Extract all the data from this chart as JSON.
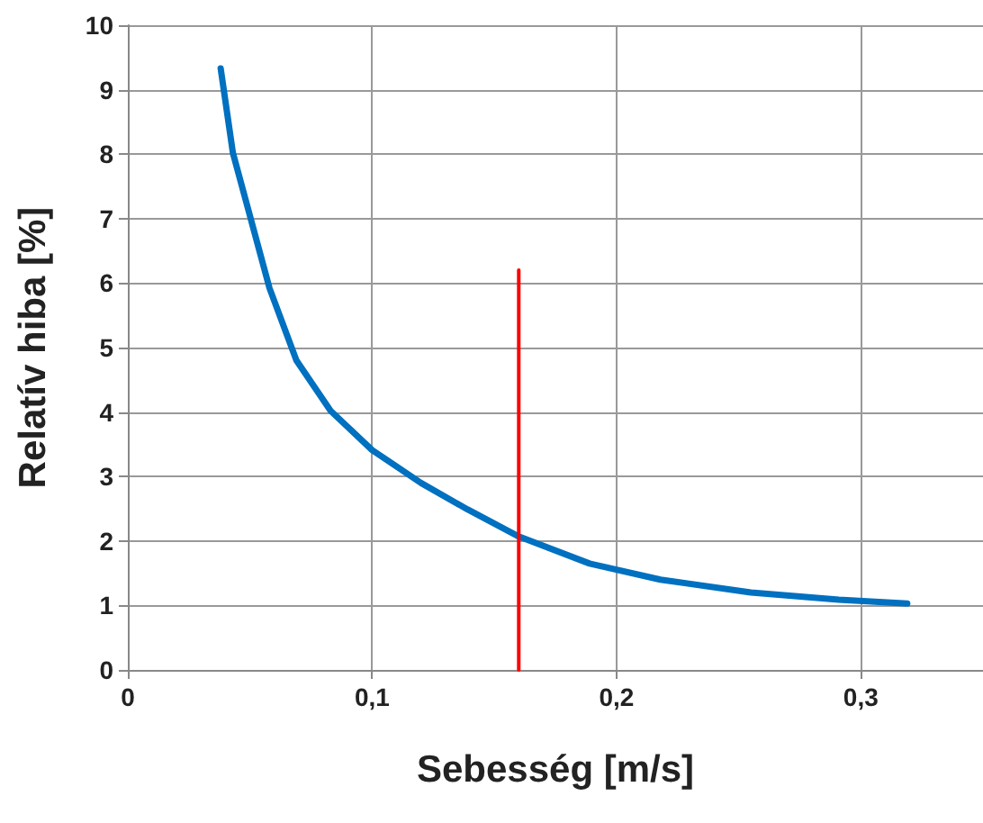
{
  "chart_data": {
    "type": "line",
    "xlabel": "Sebesség [m/s]",
    "ylabel": "Relatív hiba [%]",
    "xlim": [
      0,
      0.35
    ],
    "xticks": [
      0,
      {
        "value": 0.1,
        "label": "0,1"
      },
      {
        "value": 0.2,
        "label": "0,2"
      },
      {
        "value": 0.3,
        "label": "0,3"
      }
    ],
    "ylim": [
      0,
      10
    ],
    "yticks": [
      0,
      1,
      2,
      3,
      4,
      5,
      6,
      7,
      8,
      9,
      10
    ],
    "grid": true,
    "marker": "none",
    "line_style": "solid",
    "series": [
      {
        "color": "#0070c0",
        "x": [
          0.038,
          0.043,
          0.05,
          0.058,
          0.069,
          0.083,
          0.1,
          0.12,
          0.139,
          0.16,
          0.189,
          0.218,
          0.255,
          0.291,
          0.319
        ],
        "values": [
          9.33,
          8.02,
          7.04,
          5.92,
          4.8,
          4.02,
          3.41,
          2.9,
          2.49,
          2.07,
          1.65,
          1.4,
          1.2,
          1.09,
          1.03
        ]
      },
      {
        "color": "#ff0000",
        "x": [
          0.16,
          0.16
        ],
        "values": [
          0,
          6.2
        ]
      }
    ]
  }
}
